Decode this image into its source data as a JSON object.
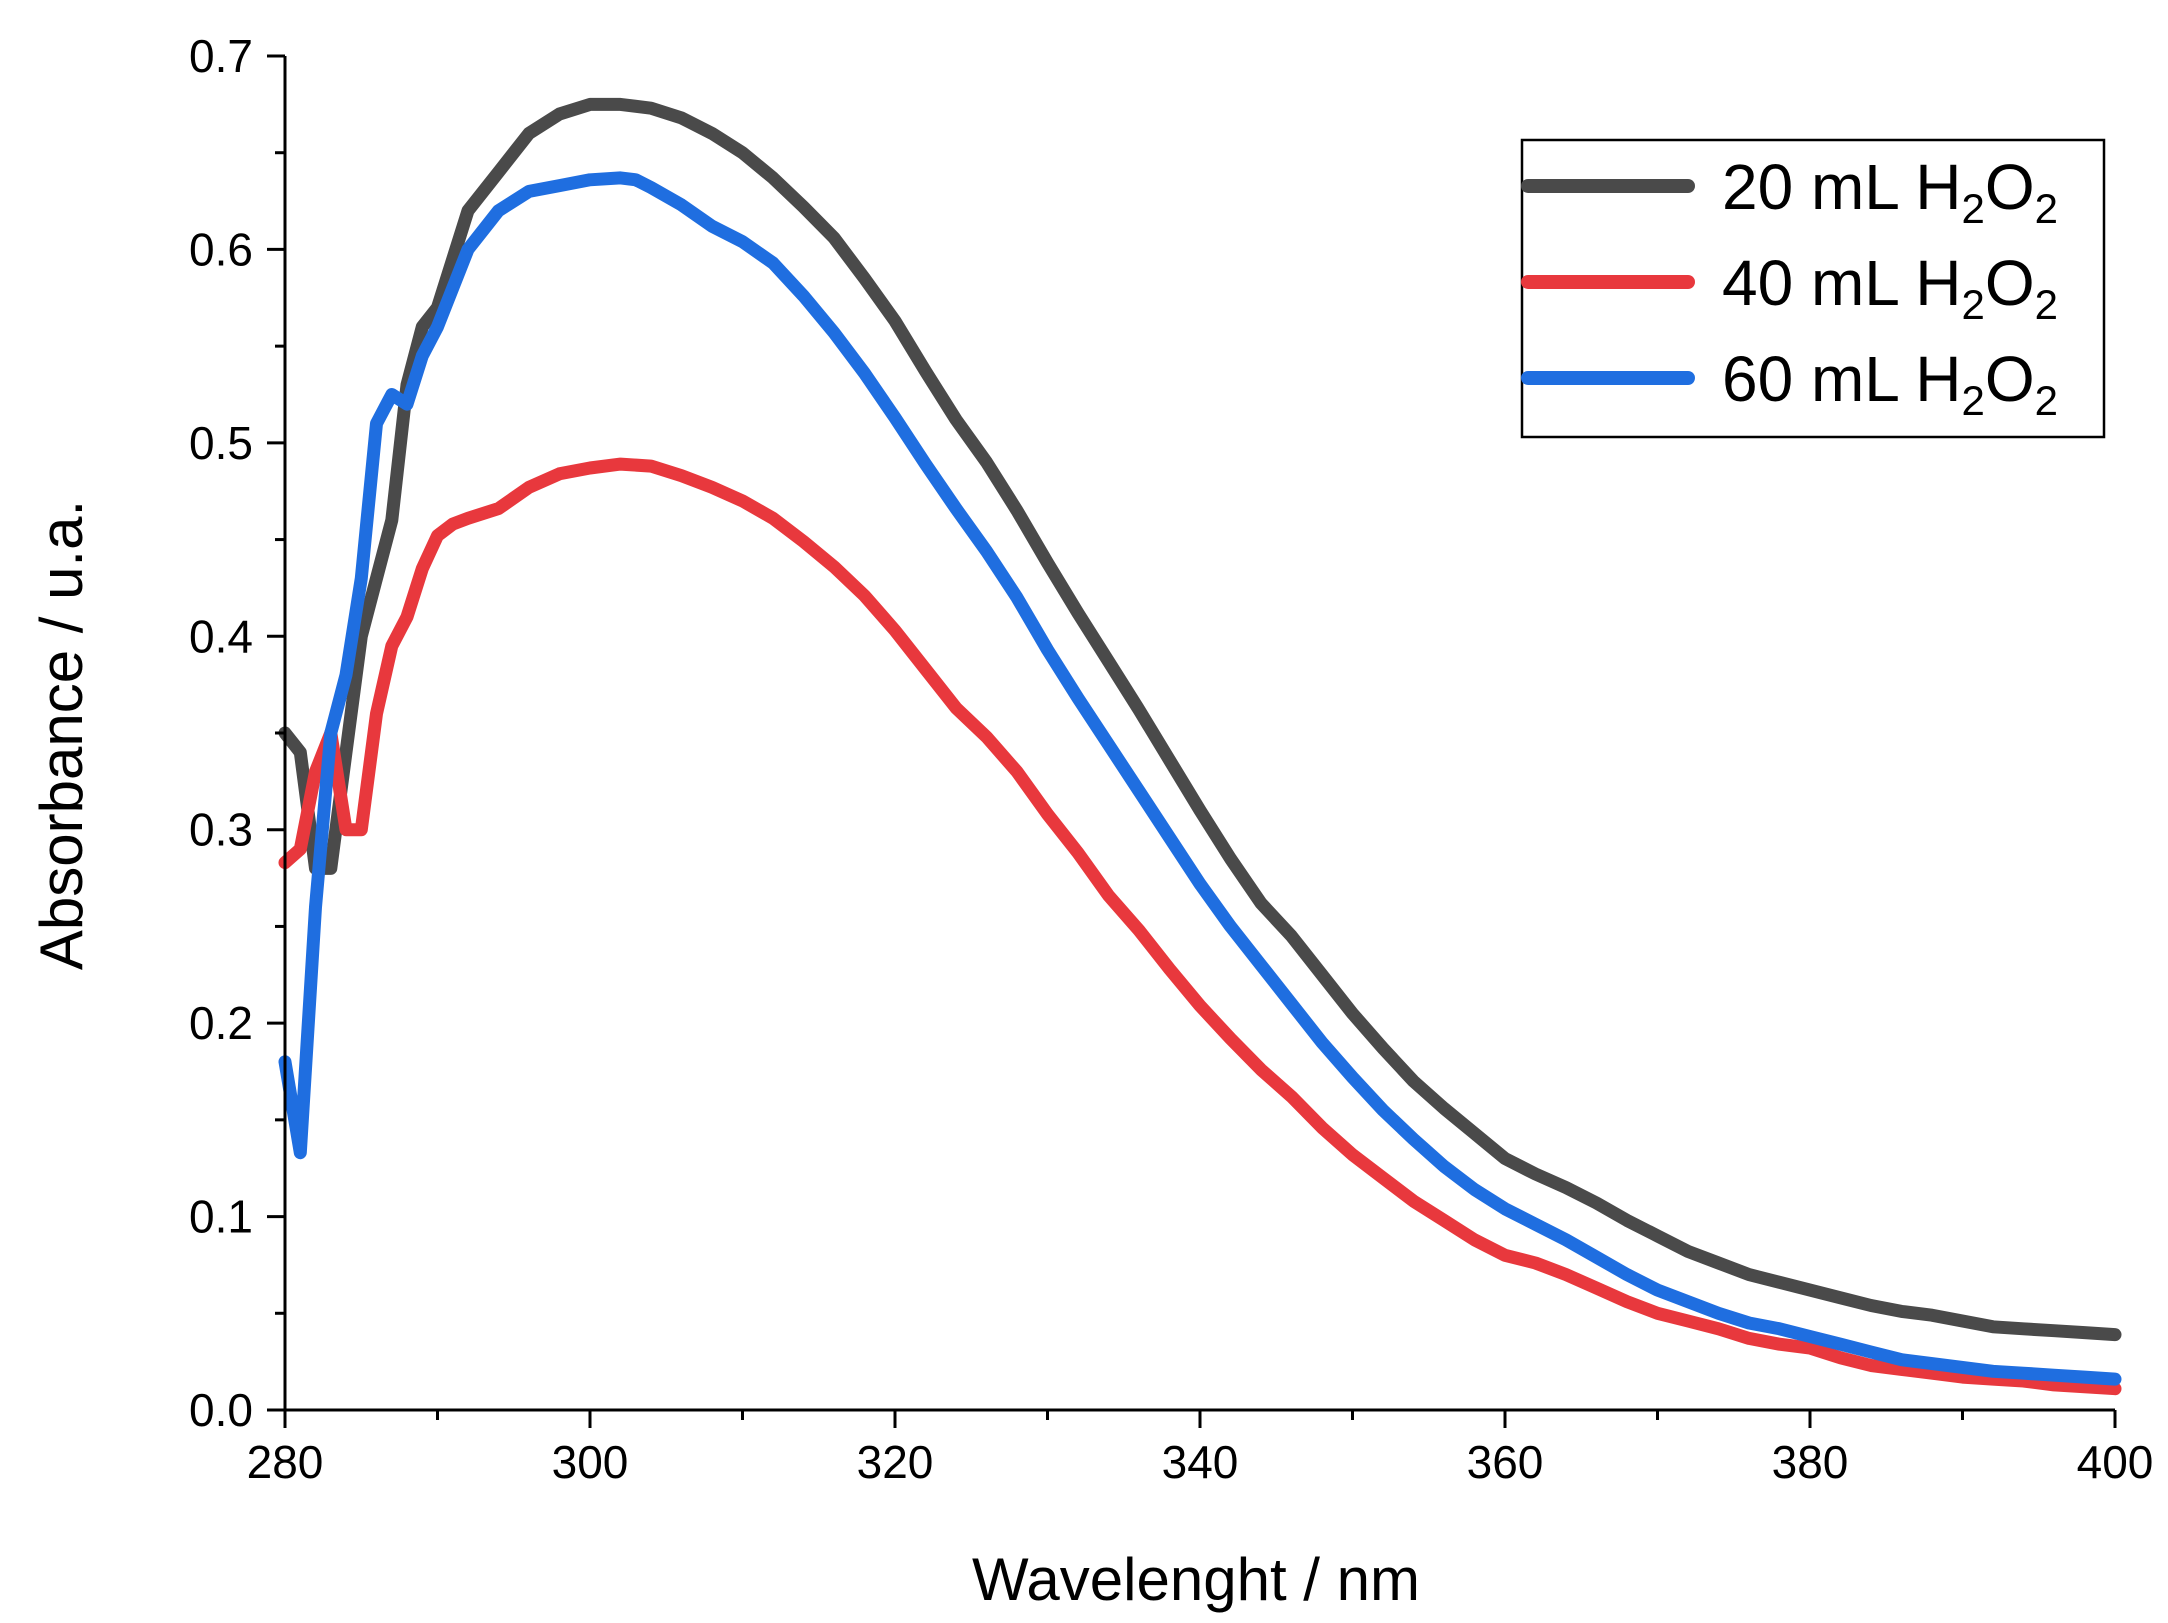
{
  "chart_data": {
    "type": "line",
    "title": "",
    "xlabel": "Wavelenght / nm",
    "ylabel": "Absorbance / u.a.",
    "xlim": [
      280,
      400
    ],
    "ylim": [
      0.0,
      0.7
    ],
    "xticks": [
      "280",
      "300",
      "320",
      "340",
      "360",
      "380",
      "400"
    ],
    "yticks": [
      "0.0",
      "0.1",
      "0.2",
      "0.3",
      "0.4",
      "0.5",
      "0.6",
      "0.7"
    ],
    "grid": false,
    "legend_position": "top-right",
    "series": [
      {
        "name": "20 mL H2O2",
        "label_main": "20 mL H",
        "sub1": "2",
        "mid": "O",
        "sub2": "2",
        "color": "#4a4a4a",
        "x": [
          280,
          281,
          282,
          283,
          284,
          285,
          286,
          287,
          288,
          289,
          290,
          292,
          294,
          296,
          298,
          300,
          302,
          304,
          306,
          308,
          310,
          312,
          314,
          316,
          318,
          320,
          322,
          324,
          326,
          328,
          330,
          332,
          334,
          336,
          338,
          340,
          342,
          344,
          346,
          348,
          350,
          352,
          354,
          356,
          358,
          360,
          362,
          364,
          366,
          368,
          370,
          372,
          374,
          376,
          378,
          380,
          382,
          384,
          386,
          388,
          390,
          392,
          394,
          396,
          398,
          400
        ],
        "y": [
          0.35,
          0.34,
          0.28,
          0.28,
          0.34,
          0.4,
          0.43,
          0.46,
          0.53,
          0.56,
          0.57,
          0.62,
          0.64,
          0.66,
          0.67,
          0.675,
          0.675,
          0.673,
          0.668,
          0.66,
          0.65,
          0.637,
          0.622,
          0.606,
          0.585,
          0.563,
          0.537,
          0.512,
          0.49,
          0.465,
          0.438,
          0.412,
          0.387,
          0.362,
          0.336,
          0.31,
          0.285,
          0.262,
          0.245,
          0.225,
          0.205,
          0.187,
          0.17,
          0.156,
          0.143,
          0.13,
          0.122,
          0.115,
          0.107,
          0.098,
          0.09,
          0.082,
          0.076,
          0.07,
          0.066,
          0.062,
          0.058,
          0.054,
          0.051,
          0.049,
          0.046,
          0.043,
          0.042,
          0.041,
          0.04,
          0.039
        ]
      },
      {
        "name": "40 mL H2O2",
        "label_main": "40 mL H",
        "sub1": "2",
        "mid": "O",
        "sub2": "2",
        "color": "#e8383d",
        "x": [
          280,
          281,
          282,
          283,
          284,
          285,
          286,
          287,
          288,
          289,
          290,
          291,
          292,
          294,
          296,
          298,
          300,
          302,
          304,
          306,
          308,
          310,
          312,
          314,
          316,
          318,
          320,
          322,
          324,
          326,
          328,
          330,
          332,
          334,
          336,
          338,
          340,
          342,
          344,
          346,
          348,
          350,
          352,
          354,
          356,
          358,
          360,
          362,
          364,
          366,
          368,
          370,
          372,
          374,
          376,
          378,
          380,
          382,
          384,
          386,
          388,
          390,
          392,
          394,
          396,
          398,
          400
        ],
        "y": [
          0.283,
          0.29,
          0.33,
          0.35,
          0.3,
          0.3,
          0.36,
          0.395,
          0.41,
          0.435,
          0.452,
          0.458,
          0.461,
          0.466,
          0.477,
          0.484,
          0.487,
          0.489,
          0.488,
          0.483,
          0.477,
          0.47,
          0.461,
          0.449,
          0.436,
          0.421,
          0.403,
          0.383,
          0.363,
          0.348,
          0.33,
          0.308,
          0.288,
          0.266,
          0.248,
          0.228,
          0.209,
          0.192,
          0.176,
          0.162,
          0.146,
          0.132,
          0.12,
          0.108,
          0.098,
          0.088,
          0.08,
          0.076,
          0.07,
          0.063,
          0.056,
          0.05,
          0.046,
          0.042,
          0.037,
          0.034,
          0.032,
          0.027,
          0.023,
          0.021,
          0.019,
          0.017,
          0.016,
          0.015,
          0.013,
          0.012,
          0.011
        ]
      },
      {
        "name": "60 mL H2O2",
        "label_main": "60 mL H",
        "sub1": "2",
        "mid": "O",
        "sub2": "2",
        "color": "#1f6ee0",
        "x": [
          280,
          281,
          282,
          283,
          284,
          285,
          286,
          287,
          288,
          289,
          290,
          292,
          294,
          296,
          298,
          300,
          302,
          303,
          304,
          306,
          308,
          310,
          312,
          314,
          316,
          318,
          320,
          322,
          324,
          326,
          328,
          330,
          332,
          334,
          336,
          338,
          340,
          342,
          344,
          346,
          348,
          350,
          352,
          354,
          356,
          358,
          360,
          362,
          364,
          366,
          368,
          370,
          372,
          374,
          376,
          378,
          380,
          382,
          384,
          386,
          388,
          390,
          392,
          394,
          396,
          398,
          400
        ],
        "y": [
          0.18,
          0.133,
          0.26,
          0.35,
          0.38,
          0.43,
          0.51,
          0.525,
          0.52,
          0.545,
          0.56,
          0.6,
          0.62,
          0.63,
          0.633,
          0.636,
          0.637,
          0.636,
          0.632,
          0.623,
          0.612,
          0.604,
          0.593,
          0.576,
          0.557,
          0.536,
          0.513,
          0.489,
          0.466,
          0.444,
          0.42,
          0.393,
          0.368,
          0.344,
          0.32,
          0.296,
          0.272,
          0.25,
          0.23,
          0.21,
          0.19,
          0.172,
          0.155,
          0.14,
          0.126,
          0.114,
          0.104,
          0.096,
          0.088,
          0.079,
          0.07,
          0.062,
          0.056,
          0.05,
          0.045,
          0.042,
          0.038,
          0.034,
          0.03,
          0.026,
          0.024,
          0.022,
          0.02,
          0.019,
          0.018,
          0.017,
          0.016
        ]
      }
    ]
  }
}
